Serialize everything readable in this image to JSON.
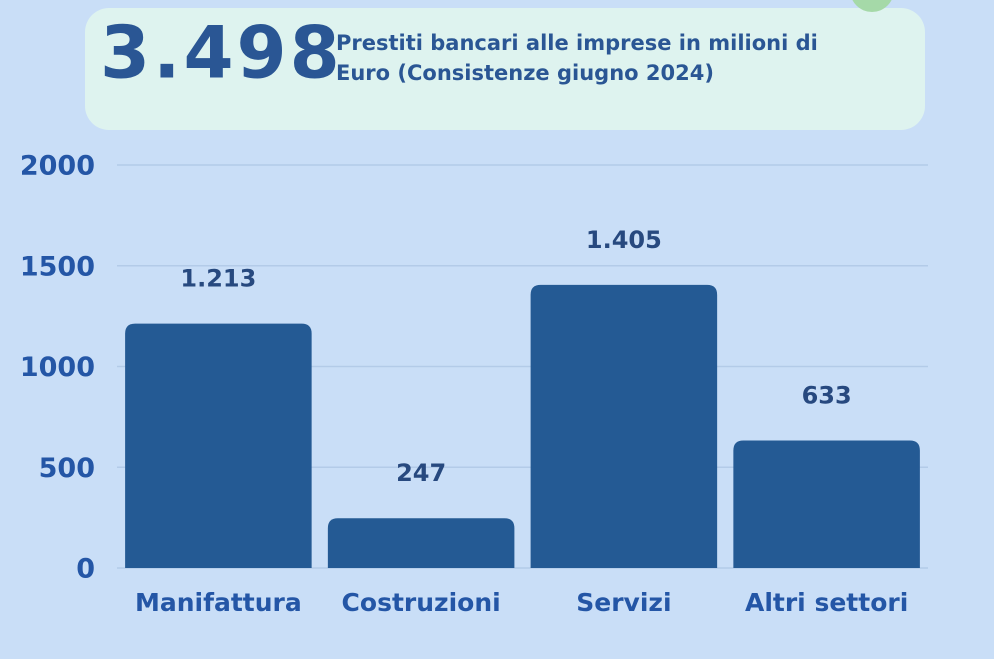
{
  "chart_data": {
    "type": "bar",
    "headline": "3.498",
    "title": "Prestiti bancari alle imprese in milioni di Euro (Consistenze giugno 2024)",
    "categories": [
      "Manifattura",
      "Costruzioni",
      "Servizi",
      "Altri settori"
    ],
    "values": [
      1213,
      247,
      1405,
      633
    ],
    "value_labels": [
      "1.213",
      "247",
      "1.405",
      "633"
    ],
    "color": "#245a94",
    "ylim": [
      0,
      2000
    ],
    "yticks": [
      0,
      500,
      1000,
      1500,
      2000
    ],
    "grid": true
  }
}
